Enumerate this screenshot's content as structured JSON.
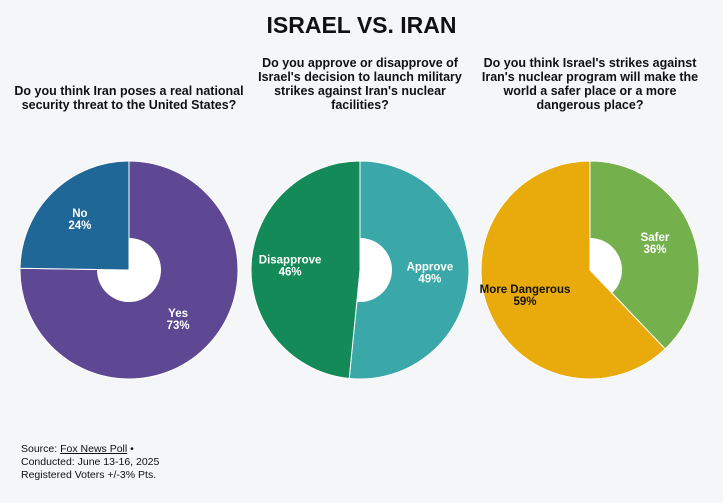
{
  "title": "ISRAEL VS. IRAN",
  "chart_data": [
    {
      "type": "donut",
      "title": "Do you think Iran poses a real national security threat to the United States?",
      "categories": [
        "Yes",
        "No"
      ],
      "values": [
        73,
        24
      ],
      "value_labels": [
        "73%",
        "24%"
      ],
      "colors": [
        "#5e4793",
        "#1f6796"
      ],
      "label_colors": [
        "#ffffff",
        "#ffffff"
      ]
    },
    {
      "type": "donut",
      "title": "Do you approve or disapprove of Israel's decision to launch military strikes against Iran's nuclear facilities?",
      "categories": [
        "Approve",
        "Disapprove"
      ],
      "values": [
        49,
        46
      ],
      "value_labels": [
        "49%",
        "46%"
      ],
      "colors": [
        "#3aa8a8",
        "#138a57"
      ],
      "label_colors": [
        "#ffffff",
        "#ffffff"
      ]
    },
    {
      "type": "donut",
      "title": "Do you think Israel's strikes against Iran's nuclear program will make the world a safer place or a more dangerous place?",
      "categories": [
        "Safer",
        "More Dangerous"
      ],
      "values": [
        36,
        59
      ],
      "value_labels": [
        "36%",
        "59%"
      ],
      "colors": [
        "#74b04c",
        "#e9ab0c"
      ],
      "label_colors": [
        "#ffffff",
        "#111111"
      ]
    }
  ],
  "source": {
    "prefix": "Source:",
    "link": "Fox News Poll",
    "suffix": "•",
    "conducted": "Conducted: June 13-16, 2025",
    "voters": "Registered Voters +/-3% Pts."
  }
}
